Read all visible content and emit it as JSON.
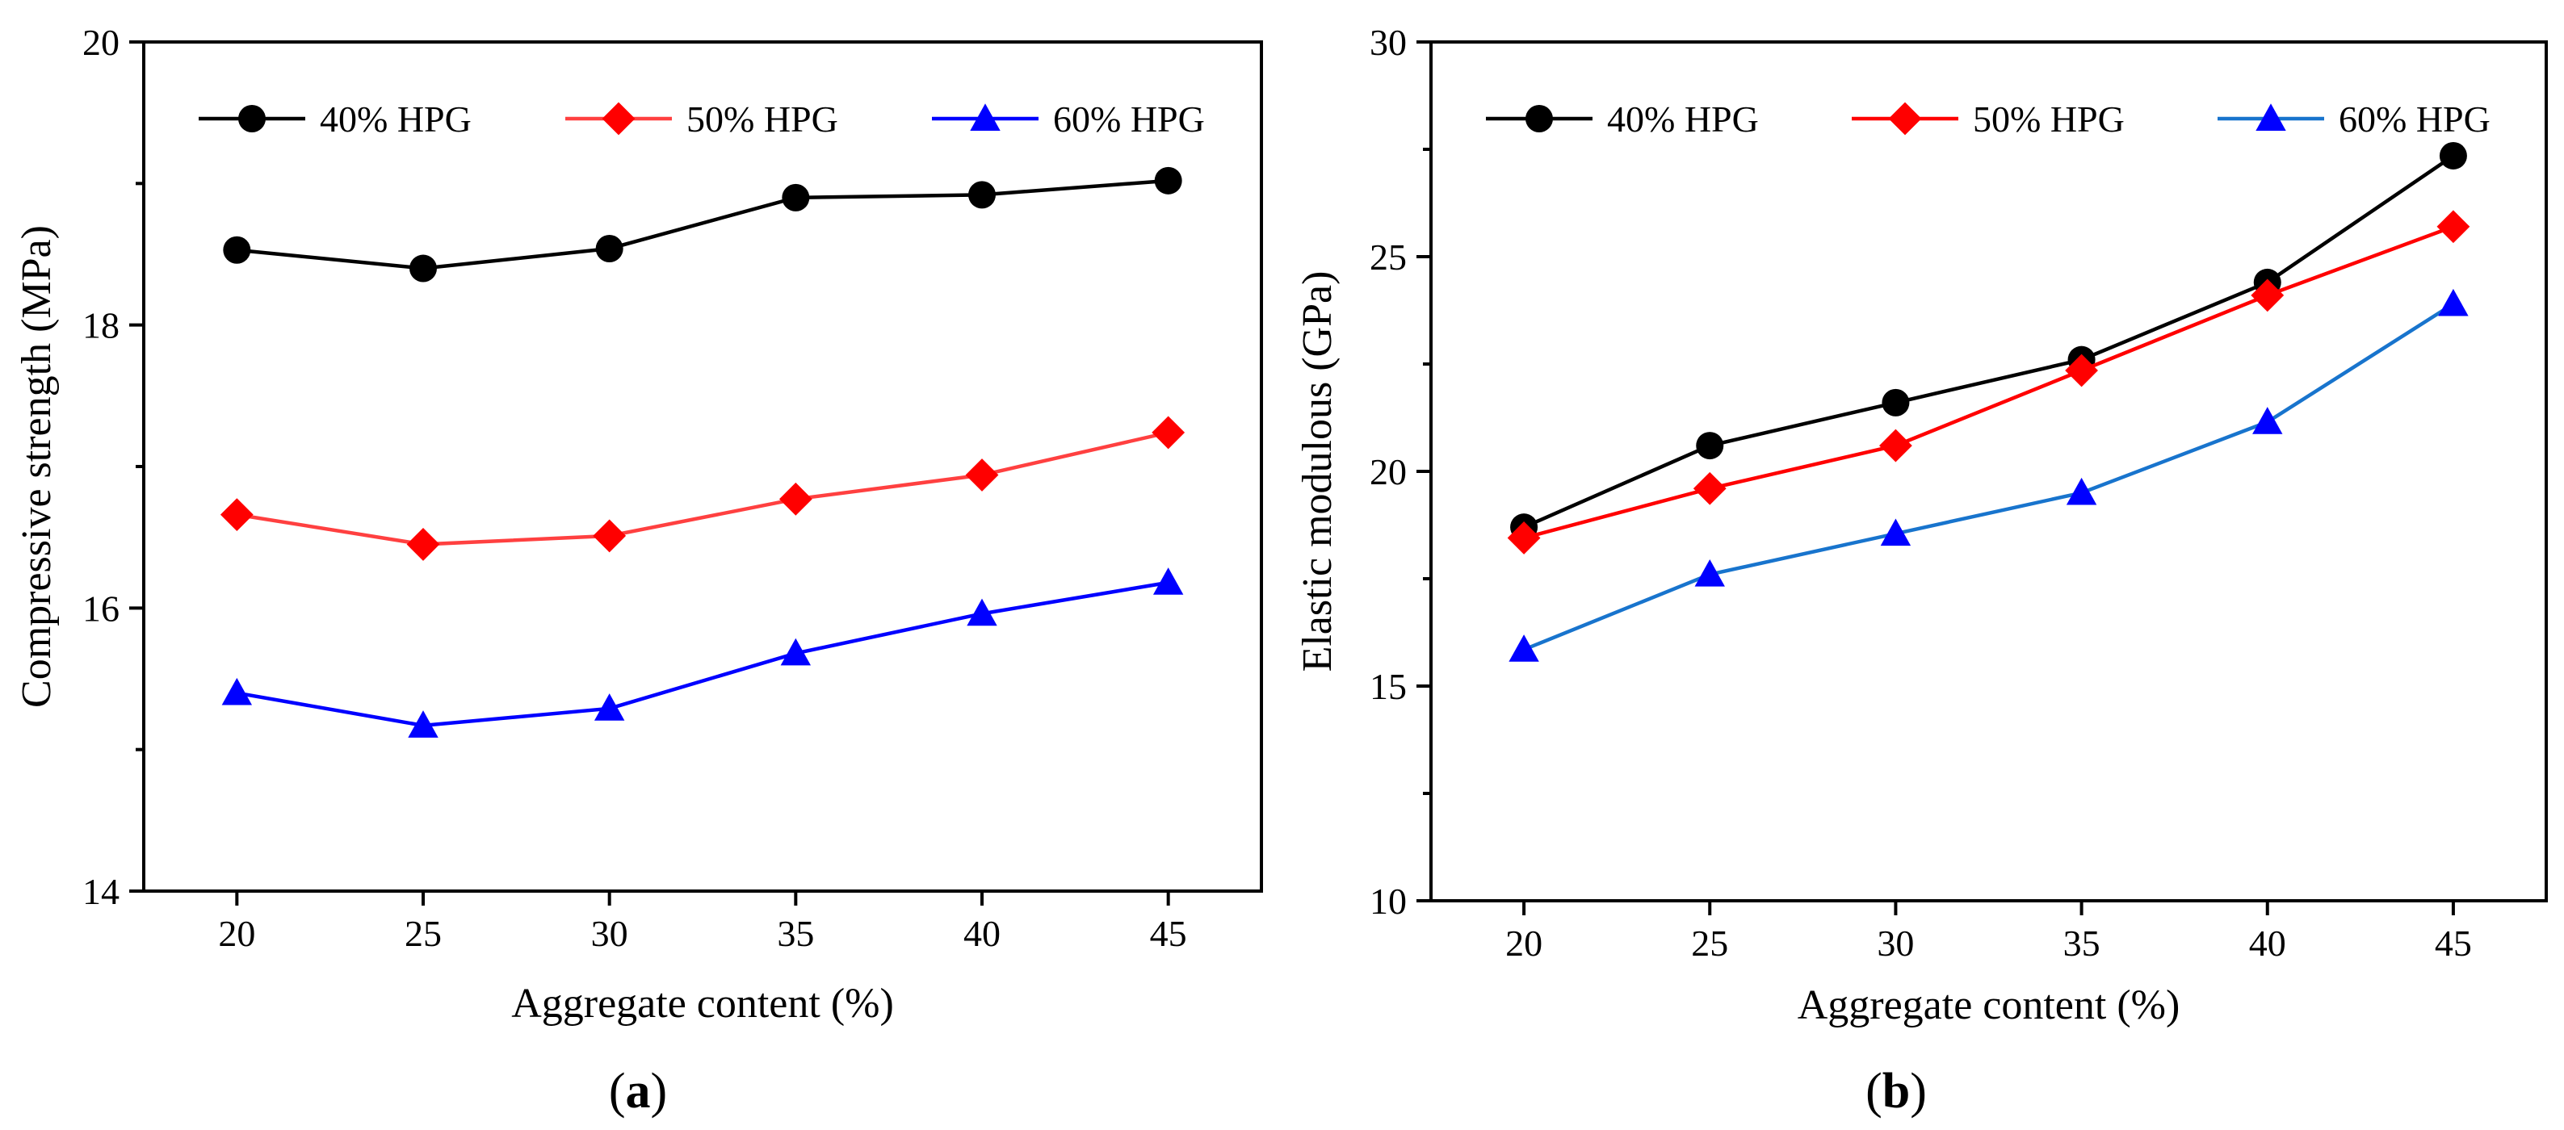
{
  "chart_data": [
    {
      "type": "line",
      "panel_label": "(a)",
      "panel_letter": "a",
      "xlabel": "Aggregate content (%)",
      "ylabel": "Compressive strength (MPa)",
      "x": [
        20,
        25,
        30,
        35,
        40,
        45
      ],
      "x_tick_labels": [
        "20",
        "25",
        "30",
        "35",
        "40",
        "45"
      ],
      "xlim": [
        17.5,
        47.5
      ],
      "ylim": [
        14,
        20
      ],
      "y_ticks": [
        14,
        16,
        18,
        20
      ],
      "y_minor_ticks": [
        15,
        17,
        19
      ],
      "y_tick_labels": [
        "14",
        "16",
        "18",
        "20"
      ],
      "legend_position": "top",
      "series": [
        {
          "name": "40% HPG",
          "marker": "circle",
          "color": "#000000",
          "values": [
            18.53,
            18.4,
            18.54,
            18.9,
            18.92,
            19.02
          ]
        },
        {
          "name": "50% HPG",
          "marker": "diamond",
          "color": "#FF0000",
          "line_color": "#FF4040",
          "values": [
            16.66,
            16.45,
            16.51,
            16.77,
            16.94,
            17.24
          ]
        },
        {
          "name": "60% HPG",
          "marker": "triangle",
          "color": "#0000FF",
          "line_color": "#0000FF",
          "values": [
            15.4,
            15.17,
            15.29,
            15.68,
            15.96,
            16.18
          ]
        }
      ]
    },
    {
      "type": "line",
      "panel_label": "(b)",
      "panel_letter": "b",
      "xlabel": "Aggregate content (%)",
      "ylabel": "Elastic modulous (GPa)",
      "x": [
        20,
        25,
        30,
        35,
        40,
        45
      ],
      "x_tick_labels": [
        "20",
        "25",
        "30",
        "35",
        "40",
        "45"
      ],
      "xlim": [
        17.5,
        47.5
      ],
      "ylim": [
        10,
        30
      ],
      "y_ticks": [
        10,
        15,
        20,
        25,
        30
      ],
      "y_minor_ticks": [
        12.5,
        17.5,
        22.5,
        27.5
      ],
      "y_tick_labels": [
        "10",
        "15",
        "20",
        "25",
        "30"
      ],
      "legend_position": "top",
      "series": [
        {
          "name": "40% HPG",
          "marker": "circle",
          "color": "#000000",
          "values": [
            18.7,
            20.6,
            21.6,
            22.6,
            24.4,
            27.35
          ]
        },
        {
          "name": "50% HPG",
          "marker": "diamond",
          "color": "#FF0000",
          "line_color": "#FF0000",
          "values": [
            18.45,
            19.6,
            20.6,
            22.35,
            24.1,
            25.7
          ]
        },
        {
          "name": "60% HPG",
          "marker": "triangle",
          "color": "#0000FF",
          "line_color": "#1874CD",
          "values": [
            15.85,
            17.6,
            18.55,
            19.5,
            21.15,
            23.9
          ]
        }
      ]
    }
  ]
}
